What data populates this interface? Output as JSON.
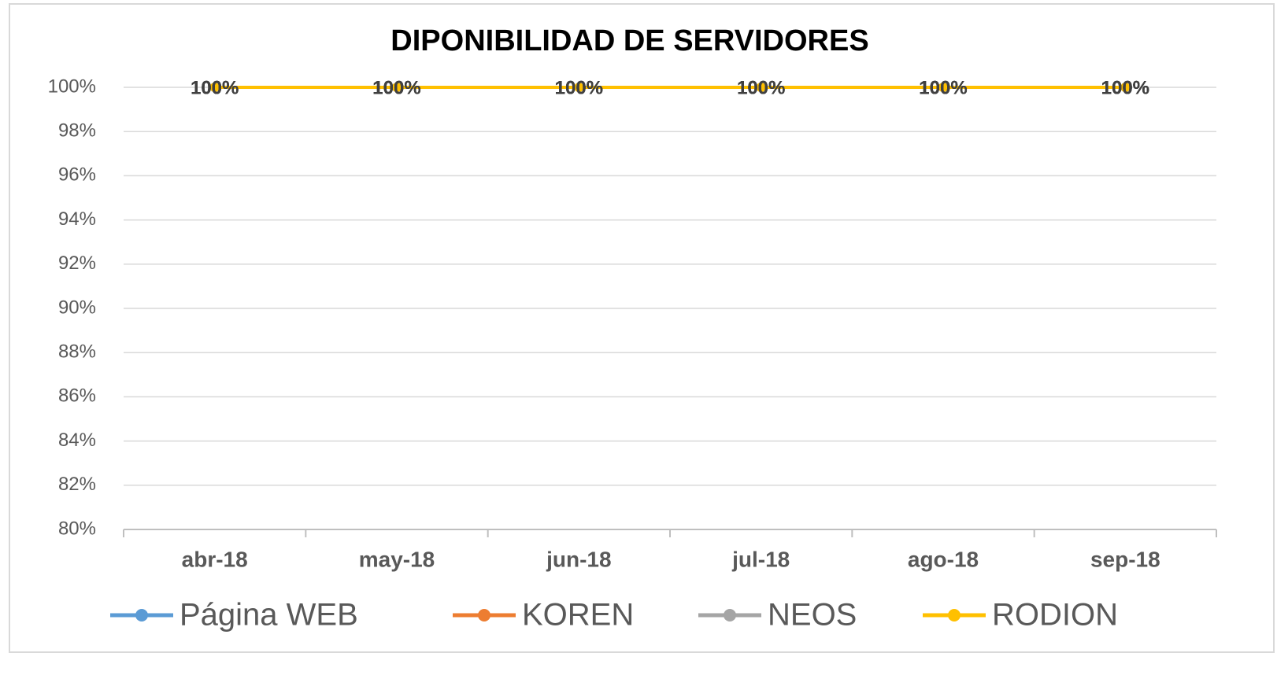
{
  "chart_data": {
    "type": "line",
    "title": "DIPONIBILIDAD DE SERVIDORES",
    "categories": [
      "abr-18",
      "may-18",
      "jun-18",
      "jul-18",
      "ago-18",
      "sep-18"
    ],
    "series": [
      {
        "name": "Página WEB",
        "color": "#5b9bd5",
        "values": [
          100,
          100,
          100,
          100,
          100,
          100
        ],
        "value_labels": [
          "100%",
          "100%",
          "100%",
          "100%",
          "100%",
          "100%"
        ]
      },
      {
        "name": "KOREN",
        "color": "#ed7d31",
        "values": [
          100,
          100,
          100,
          100,
          100,
          100
        ],
        "value_labels": [
          "100%",
          "100%",
          "100%",
          "100%",
          "100%",
          "100%"
        ]
      },
      {
        "name": "NEOS",
        "color": "#a5a5a5",
        "values": [
          100,
          100,
          100,
          100,
          100,
          100
        ],
        "value_labels": [
          "100%",
          "100%",
          "100%",
          "100%",
          "100%",
          "100%"
        ]
      },
      {
        "name": "RODION",
        "color": "#ffc000",
        "values": [
          100,
          100,
          100,
          100,
          100,
          100
        ],
        "value_labels": [
          "100%",
          "100%",
          "100%",
          "100%",
          "100%",
          "100%"
        ]
      }
    ],
    "ylim": [
      80,
      100
    ],
    "yticks": [
      {
        "value": 80,
        "label": "80%"
      },
      {
        "value": 82,
        "label": "82%"
      },
      {
        "value": 84,
        "label": "84%"
      },
      {
        "value": 86,
        "label": "86%"
      },
      {
        "value": 88,
        "label": "88%"
      },
      {
        "value": 90,
        "label": "90%"
      },
      {
        "value": 92,
        "label": "92%"
      },
      {
        "value": 94,
        "label": "94%"
      },
      {
        "value": 96,
        "label": "96%"
      },
      {
        "value": 98,
        "label": "98%"
      },
      {
        "value": 100,
        "label": "100%"
      }
    ],
    "grid": true,
    "legend": "bottom"
  }
}
